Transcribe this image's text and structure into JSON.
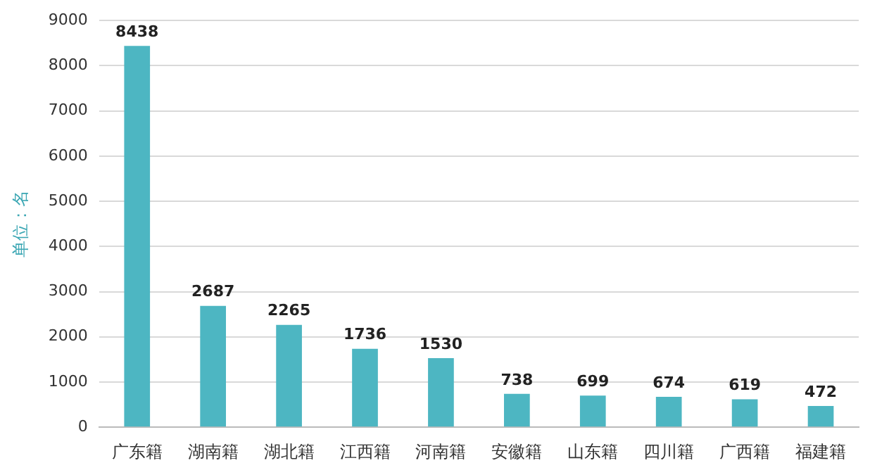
{
  "chart_data": {
    "type": "bar",
    "ylabel": "单位：名",
    "categories": [
      "广东籍",
      "湖南籍",
      "湖北籍",
      "江西籍",
      "河南籍",
      "安徽籍",
      "山东籍",
      "四川籍",
      "广西籍",
      "福建籍"
    ],
    "values": [
      8438,
      2687,
      2265,
      1736,
      1530,
      738,
      699,
      674,
      619,
      472
    ],
    "color": "#4db6c2",
    "ylim": [
      0,
      9000
    ],
    "yticks": [
      0,
      1000,
      2000,
      3000,
      4000,
      5000,
      6000,
      7000,
      8000,
      9000
    ],
    "grid": "y",
    "data_labels": true
  }
}
